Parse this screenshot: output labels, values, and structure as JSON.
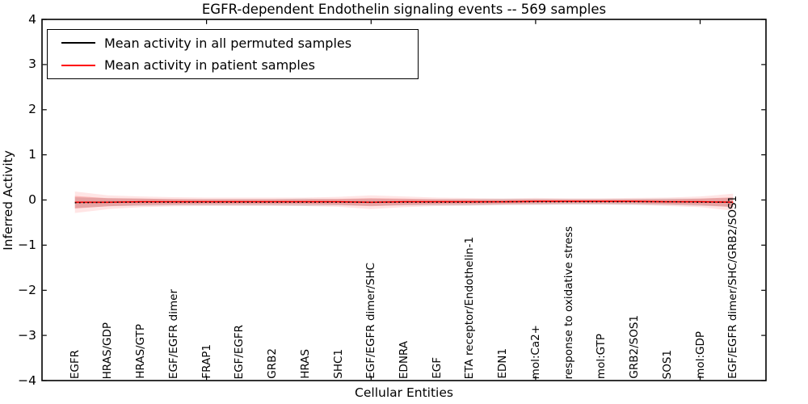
{
  "title": "EGFR-dependent Endothelin signaling events -- 569 samples",
  "axes": {
    "ylabel": "Inferred Activity",
    "xlabel": "Cellular Entities"
  },
  "legend": {
    "items": [
      {
        "label": "Mean activity in all permuted samples",
        "color": "#000000"
      },
      {
        "label": "Mean activity in patient samples",
        "color": "#ff0000"
      }
    ]
  },
  "colors": {
    "patient_line": "#ff0000",
    "permuted_line": "#000000",
    "patient_band": "#ff0000",
    "permuted_band": "#000000",
    "frame": "#000000",
    "background": "#ffffff"
  },
  "chart_data": {
    "type": "line",
    "title": "EGFR-dependent Endothelin signaling events -- 569 samples",
    "xlabel": "Cellular Entities",
    "ylabel": "Inferred Activity",
    "ylim": [
      -4,
      4
    ],
    "xlim": [
      0,
      22
    ],
    "grid": false,
    "legend_position": "upper left",
    "categories": [
      "EGFR",
      "HRAS/GDP",
      "HRAS/GTP",
      "EGF/EGFR dimer",
      "FRAP1",
      "EGF/EGFR",
      "GRB2",
      "HRAS",
      "SHC1",
      "EGF/EGFR dimer/SHC",
      "EDNRA",
      "EGF",
      "ETA receptor/Endothelin-1",
      "EDN1",
      "mol:Ca2+",
      "response to oxidative stress",
      "mol:GTP",
      "GRB2/SOS1",
      "SOS1",
      "mol:GDP",
      "EGF/EGFR dimer/SHC/GRB2/SOS1"
    ],
    "x": [
      1,
      2,
      3,
      4,
      5,
      6,
      7,
      8,
      9,
      10,
      11,
      12,
      13,
      14,
      15,
      16,
      17,
      18,
      19,
      20,
      21
    ],
    "x_tick_values": [
      5,
      10,
      15,
      20
    ],
    "y_tick_values": [
      4,
      3,
      2,
      1,
      0,
      -1,
      -2,
      -3,
      -4
    ],
    "y_tick_labels": [
      "4",
      "3",
      "2",
      "1",
      "0",
      "−1",
      "−2",
      "−3",
      "−4"
    ],
    "series": [
      {
        "name": "Mean activity in all permuted samples",
        "color": "#000000",
        "plot_style": "dotted",
        "values": [
          -0.06,
          -0.05,
          -0.05,
          -0.05,
          -0.05,
          -0.05,
          -0.05,
          -0.05,
          -0.05,
          -0.05,
          -0.05,
          -0.05,
          -0.05,
          -0.04,
          -0.04,
          -0.04,
          -0.04,
          -0.04,
          -0.04,
          -0.05,
          -0.05
        ]
      },
      {
        "name": "Mean activity in patient samples",
        "color": "#ff0000",
        "plot_style": "solid",
        "values": [
          -0.05,
          -0.05,
          -0.04,
          -0.04,
          -0.04,
          -0.04,
          -0.04,
          -0.04,
          -0.04,
          -0.05,
          -0.04,
          -0.04,
          -0.04,
          -0.04,
          -0.03,
          -0.03,
          -0.03,
          -0.03,
          -0.04,
          -0.04,
          -0.05
        ]
      }
    ],
    "bands": [
      {
        "name": "permuted-std-band",
        "series": "Mean activity in all permuted samples",
        "color": "#000000",
        "opacity": 0.13,
        "half_widths": [
          0.12,
          0.09,
          0.08,
          0.07,
          0.07,
          0.07,
          0.07,
          0.08,
          0.07,
          0.08,
          0.07,
          0.07,
          0.07,
          0.065,
          0.065,
          0.06,
          0.06,
          0.065,
          0.07,
          0.08,
          0.1
        ]
      },
      {
        "name": "patient-std-band",
        "series": "Mean activity in patient samples",
        "color": "#ff0000",
        "opacity": 0.18,
        "half_widths": [
          0.14,
          0.09,
          0.07,
          0.06,
          0.055,
          0.055,
          0.055,
          0.055,
          0.065,
          0.09,
          0.07,
          0.055,
          0.05,
          0.045,
          0.045,
          0.04,
          0.04,
          0.045,
          0.055,
          0.07,
          0.11
        ]
      }
    ]
  }
}
